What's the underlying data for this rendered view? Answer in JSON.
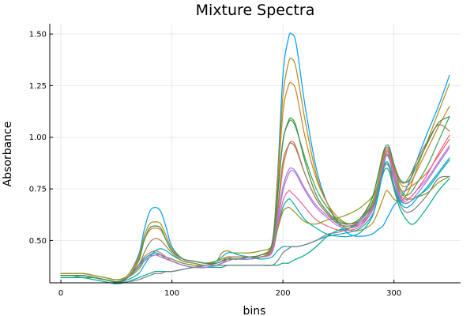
{
  "chart_data": {
    "type": "line",
    "title": "Mixture Spectra",
    "xlabel": "bins",
    "ylabel": "Absorbance",
    "xlim": [
      -10,
      360
    ],
    "ylim": [
      0.295,
      1.55
    ],
    "xticks": [
      0,
      100,
      200,
      300
    ],
    "xtick_labels": [
      "0",
      "100",
      "200",
      "300"
    ],
    "yticks": [
      0.5,
      0.75,
      1.0,
      1.25,
      1.5
    ],
    "ytick_labels": [
      "0.50",
      "0.75",
      "1.00",
      "1.25",
      "1.50"
    ],
    "grid": true,
    "legend": "none",
    "x": [
      0,
      10,
      20,
      30,
      40,
      50,
      60,
      70,
      75,
      80,
      85,
      90,
      95,
      100,
      110,
      120,
      130,
      140,
      145,
      150,
      155,
      160,
      170,
      180,
      190,
      195,
      200,
      205,
      208,
      212,
      220,
      230,
      240,
      250,
      260,
      270,
      280,
      285,
      290,
      293,
      296,
      300,
      305,
      310,
      315,
      320,
      330,
      340,
      350
    ],
    "series": [
      {
        "color": "#009AFA",
        "values": [
          0.34,
          0.34,
          0.34,
          0.33,
          0.32,
          0.31,
          0.33,
          0.43,
          0.55,
          0.64,
          0.66,
          0.64,
          0.56,
          0.47,
          0.41,
          0.4,
          0.39,
          0.39,
          0.4,
          0.41,
          0.41,
          0.41,
          0.42,
          0.43,
          0.48,
          0.8,
          1.3,
          1.48,
          1.5,
          1.45,
          1.15,
          0.85,
          0.68,
          0.58,
          0.53,
          0.52,
          0.53,
          0.55,
          0.57,
          0.6,
          0.63,
          0.67,
          0.7,
          0.74,
          0.8,
          0.88,
          1.02,
          1.15,
          1.3
        ]
      },
      {
        "color": "#E36F47",
        "values": [
          0.33,
          0.33,
          0.33,
          0.32,
          0.31,
          0.3,
          0.32,
          0.38,
          0.42,
          0.44,
          0.45,
          0.44,
          0.42,
          0.41,
          0.39,
          0.38,
          0.37,
          0.38,
          0.39,
          0.41,
          0.42,
          0.42,
          0.42,
          0.42,
          0.45,
          0.62,
          0.85,
          0.96,
          0.98,
          0.95,
          0.82,
          0.7,
          0.63,
          0.58,
          0.57,
          0.58,
          0.64,
          0.72,
          0.87,
          0.93,
          0.92,
          0.83,
          0.75,
          0.74,
          0.76,
          0.78,
          0.83,
          0.91,
          0.99
        ]
      },
      {
        "color": "#3EA44E",
        "values": [
          0.33,
          0.33,
          0.32,
          0.32,
          0.31,
          0.3,
          0.32,
          0.37,
          0.41,
          0.43,
          0.44,
          0.43,
          0.41,
          0.4,
          0.38,
          0.37,
          0.37,
          0.38,
          0.39,
          0.4,
          0.41,
          0.41,
          0.41,
          0.42,
          0.46,
          0.7,
          0.98,
          1.07,
          1.08,
          1.04,
          0.9,
          0.75,
          0.66,
          0.6,
          0.58,
          0.6,
          0.68,
          0.77,
          0.9,
          0.94,
          0.93,
          0.86,
          0.76,
          0.72,
          0.73,
          0.77,
          0.86,
          0.98,
          1.1
        ]
      },
      {
        "color": "#C271D2",
        "values": [
          0.33,
          0.33,
          0.33,
          0.32,
          0.31,
          0.3,
          0.32,
          0.37,
          0.4,
          0.42,
          0.43,
          0.43,
          0.41,
          0.4,
          0.38,
          0.37,
          0.37,
          0.38,
          0.39,
          0.4,
          0.41,
          0.41,
          0.41,
          0.42,
          0.45,
          0.58,
          0.74,
          0.82,
          0.84,
          0.82,
          0.74,
          0.66,
          0.61,
          0.57,
          0.56,
          0.58,
          0.66,
          0.76,
          0.89,
          0.94,
          0.93,
          0.84,
          0.73,
          0.7,
          0.71,
          0.74,
          0.8,
          0.88,
          0.96
        ]
      },
      {
        "color": "#AC8D18",
        "values": [
          0.34,
          0.34,
          0.34,
          0.33,
          0.32,
          0.31,
          0.33,
          0.42,
          0.52,
          0.58,
          0.59,
          0.58,
          0.52,
          0.46,
          0.41,
          0.4,
          0.39,
          0.4,
          0.41,
          0.42,
          0.42,
          0.42,
          0.42,
          0.43,
          0.48,
          0.78,
          1.2,
          1.36,
          1.38,
          1.33,
          1.08,
          0.82,
          0.68,
          0.59,
          0.55,
          0.55,
          0.58,
          0.63,
          0.7,
          0.74,
          0.73,
          0.7,
          0.69,
          0.71,
          0.76,
          0.84,
          0.98,
          1.12,
          1.26
        ]
      },
      {
        "color": "#00A9AD",
        "values": [
          0.33,
          0.33,
          0.33,
          0.32,
          0.31,
          0.3,
          0.32,
          0.38,
          0.41,
          0.43,
          0.44,
          0.43,
          0.41,
          0.4,
          0.38,
          0.37,
          0.37,
          0.38,
          0.39,
          0.4,
          0.41,
          0.41,
          0.41,
          0.42,
          0.44,
          0.55,
          0.66,
          0.7,
          0.69,
          0.66,
          0.6,
          0.56,
          0.53,
          0.52,
          0.52,
          0.54,
          0.61,
          0.7,
          0.84,
          0.91,
          0.9,
          0.8,
          0.7,
          0.68,
          0.69,
          0.71,
          0.75,
          0.82,
          0.89
        ]
      },
      {
        "color": "#ED5E93",
        "values": [
          0.33,
          0.33,
          0.33,
          0.32,
          0.31,
          0.3,
          0.32,
          0.37,
          0.4,
          0.42,
          0.43,
          0.42,
          0.41,
          0.4,
          0.38,
          0.37,
          0.37,
          0.38,
          0.39,
          0.4,
          0.41,
          0.41,
          0.41,
          0.42,
          0.44,
          0.56,
          0.69,
          0.74,
          0.73,
          0.71,
          0.66,
          0.6,
          0.57,
          0.55,
          0.55,
          0.57,
          0.64,
          0.73,
          0.86,
          0.92,
          0.91,
          0.82,
          0.72,
          0.69,
          0.71,
          0.74,
          0.82,
          0.92,
          1.01
        ]
      },
      {
        "color": "#C68225",
        "values": [
          0.34,
          0.34,
          0.34,
          0.33,
          0.32,
          0.31,
          0.33,
          0.41,
          0.5,
          0.55,
          0.56,
          0.55,
          0.5,
          0.45,
          0.41,
          0.4,
          0.39,
          0.4,
          0.41,
          0.42,
          0.42,
          0.42,
          0.42,
          0.43,
          0.47,
          0.75,
          1.12,
          1.25,
          1.26,
          1.22,
          1.0,
          0.8,
          0.68,
          0.61,
          0.58,
          0.6,
          0.67,
          0.76,
          0.89,
          0.93,
          0.92,
          0.85,
          0.78,
          0.76,
          0.78,
          0.83,
          0.94,
          1.05,
          1.15
        ]
      },
      {
        "color": "#00A98D",
        "values": [
          0.32,
          0.32,
          0.32,
          0.31,
          0.3,
          0.29,
          0.3,
          0.32,
          0.33,
          0.34,
          0.35,
          0.35,
          0.35,
          0.35,
          0.36,
          0.37,
          0.37,
          0.37,
          0.37,
          0.38,
          0.38,
          0.38,
          0.38,
          0.38,
          0.38,
          0.38,
          0.39,
          0.39,
          0.4,
          0.41,
          0.43,
          0.47,
          0.52,
          0.55,
          0.56,
          0.59,
          0.65,
          0.72,
          0.82,
          0.85,
          0.83,
          0.75,
          0.66,
          0.61,
          0.58,
          0.59,
          0.66,
          0.74,
          0.8
        ]
      },
      {
        "color": "#8E971D",
        "values": [
          0.34,
          0.34,
          0.34,
          0.33,
          0.32,
          0.31,
          0.32,
          0.36,
          0.4,
          0.42,
          0.43,
          0.43,
          0.42,
          0.41,
          0.39,
          0.38,
          0.38,
          0.4,
          0.44,
          0.45,
          0.44,
          0.44,
          0.44,
          0.45,
          0.47,
          0.55,
          0.64,
          0.66,
          0.65,
          0.63,
          0.59,
          0.58,
          0.6,
          0.61,
          0.63,
          0.66,
          0.71,
          0.76,
          0.84,
          0.87,
          0.86,
          0.8,
          0.74,
          0.71,
          0.7,
          0.71,
          0.73,
          0.78,
          0.81
        ]
      },
      {
        "color": "#00A8CB",
        "values": [
          0.33,
          0.33,
          0.33,
          0.32,
          0.31,
          0.3,
          0.31,
          0.34,
          0.38,
          0.42,
          0.45,
          0.46,
          0.45,
          0.43,
          0.4,
          0.39,
          0.38,
          0.4,
          0.42,
          0.44,
          0.44,
          0.43,
          0.42,
          0.41,
          0.42,
          0.45,
          0.47,
          0.47,
          0.47,
          0.47,
          0.48,
          0.5,
          0.52,
          0.53,
          0.54,
          0.56,
          0.62,
          0.7,
          0.83,
          0.88,
          0.86,
          0.77,
          0.69,
          0.66,
          0.67,
          0.7,
          0.76,
          0.83,
          0.9
        ]
      },
      {
        "color": "#9A7FEB",
        "values": [
          0.33,
          0.33,
          0.33,
          0.32,
          0.31,
          0.3,
          0.32,
          0.37,
          0.4,
          0.42,
          0.43,
          0.43,
          0.42,
          0.4,
          0.38,
          0.37,
          0.37,
          0.38,
          0.39,
          0.4,
          0.41,
          0.41,
          0.41,
          0.42,
          0.45,
          0.6,
          0.76,
          0.84,
          0.85,
          0.83,
          0.75,
          0.67,
          0.62,
          0.58,
          0.57,
          0.59,
          0.65,
          0.74,
          0.86,
          0.91,
          0.89,
          0.8,
          0.71,
          0.68,
          0.69,
          0.72,
          0.79,
          0.87,
          0.95
        ]
      },
      {
        "color": "#9B7F59",
        "values": [
          0.33,
          0.33,
          0.33,
          0.32,
          0.31,
          0.3,
          0.32,
          0.38,
          0.44,
          0.49,
          0.51,
          0.5,
          0.47,
          0.44,
          0.4,
          0.39,
          0.38,
          0.39,
          0.4,
          0.42,
          0.42,
          0.42,
          0.42,
          0.42,
          0.46,
          0.65,
          0.88,
          0.96,
          0.97,
          0.94,
          0.82,
          0.7,
          0.63,
          0.58,
          0.57,
          0.6,
          0.7,
          0.8,
          0.91,
          0.95,
          0.94,
          0.86,
          0.79,
          0.78,
          0.82,
          0.88,
          0.98,
          1.06,
          1.03
        ]
      },
      {
        "color": "#7A8084",
        "values": [
          0.33,
          0.33,
          0.33,
          0.32,
          0.31,
          0.3,
          0.3,
          0.31,
          0.32,
          0.33,
          0.34,
          0.34,
          0.35,
          0.35,
          0.36,
          0.37,
          0.38,
          0.38,
          0.38,
          0.38,
          0.38,
          0.38,
          0.38,
          0.38,
          0.38,
          0.4,
          0.44,
          0.46,
          0.47,
          0.47,
          0.48,
          0.5,
          0.53,
          0.54,
          0.56,
          0.6,
          0.66,
          0.73,
          0.84,
          0.87,
          0.85,
          0.76,
          0.68,
          0.64,
          0.64,
          0.66,
          0.72,
          0.8,
          0.81
        ]
      },
      {
        "color": "#3C8B4D",
        "values": [
          0.33,
          0.33,
          0.33,
          0.32,
          0.31,
          0.3,
          0.32,
          0.4,
          0.5,
          0.56,
          0.57,
          0.56,
          0.5,
          0.45,
          0.41,
          0.4,
          0.39,
          0.39,
          0.4,
          0.41,
          0.41,
          0.41,
          0.42,
          0.43,
          0.48,
          0.72,
          0.98,
          1.08,
          1.09,
          1.05,
          0.88,
          0.72,
          0.64,
          0.59,
          0.58,
          0.61,
          0.7,
          0.8,
          0.92,
          0.96,
          0.95,
          0.87,
          0.8,
          0.78,
          0.8,
          0.86,
          0.97,
          1.07,
          1.1
        ]
      }
    ]
  }
}
